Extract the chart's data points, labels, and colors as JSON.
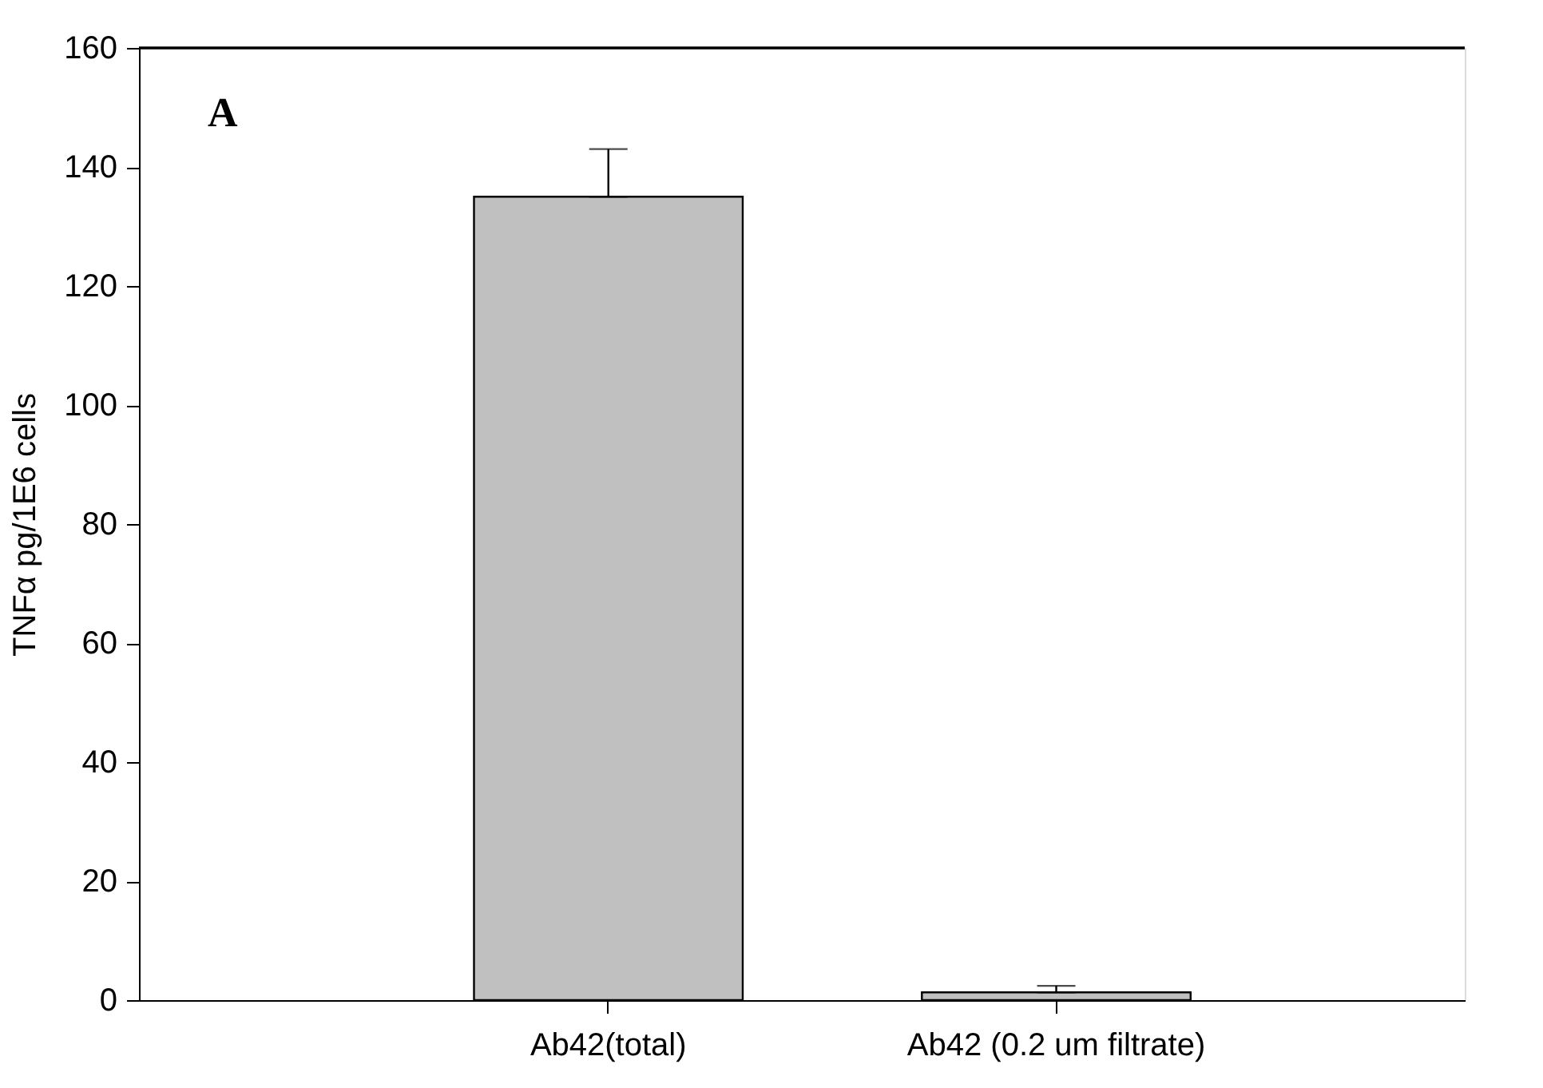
{
  "chart_data": {
    "type": "bar",
    "ylabel": "TNFα pg/1E6 cells",
    "categories": [
      "Ab42(total)",
      "Ab42 (0.2 um filtrate)"
    ],
    "values": [
      135,
      1.3
    ],
    "errors": [
      [
        135,
        143
      ],
      [
        1.3,
        2.4
      ]
    ],
    "color": "#c0c0c0",
    "ylim": [
      0,
      160
    ],
    "yticks": [
      0,
      20,
      40,
      60,
      80,
      100,
      120,
      140,
      160
    ],
    "grid": false,
    "annotations": [
      "A"
    ]
  }
}
